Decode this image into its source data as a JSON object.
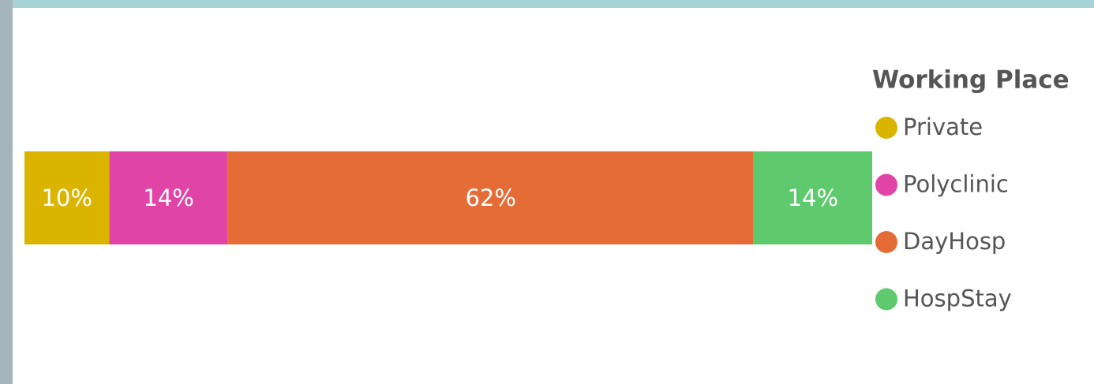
{
  "chart_data": {
    "type": "bar",
    "orientation": "horizontal",
    "stacked": true,
    "legend_title": "Working Place",
    "categories": [
      null
    ],
    "series": [
      {
        "name": "Private",
        "color": "#dbb400",
        "values": [
          10
        ],
        "value_labels": [
          "10%"
        ]
      },
      {
        "name": "Polyclinic",
        "color": "#e044a7",
        "values": [
          14
        ],
        "value_labels": [
          "14%"
        ]
      },
      {
        "name": "DayHosp",
        "color": "#e66c37",
        "values": [
          62
        ],
        "value_labels": [
          "62%"
        ]
      },
      {
        "name": "HospStay",
        "color": "#5fc96d",
        "values": [
          14
        ],
        "value_labels": [
          "14%"
        ]
      }
    ],
    "legend": "right"
  }
}
